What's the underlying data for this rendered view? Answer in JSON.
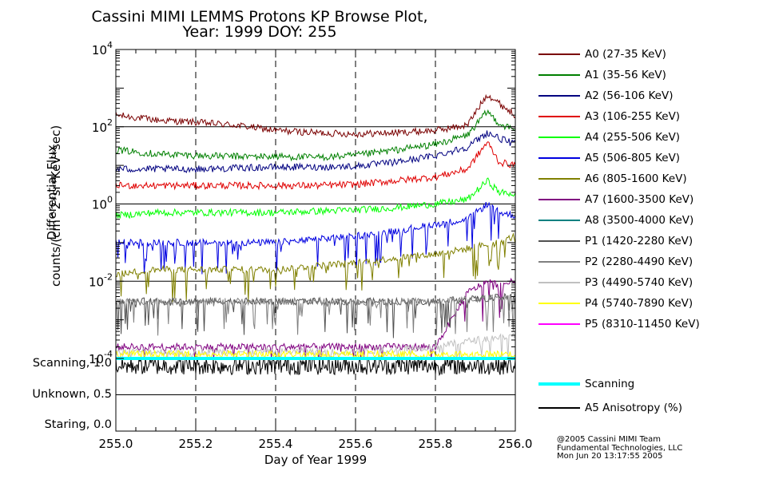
{
  "title_line1": "Cassini MIMI LEMMS Protons KP Browse Plot,",
  "title_line2": "Year: 1999 DOY: 255",
  "chart_data": {
    "type": "line",
    "xlabel": "Day of Year 1999",
    "ylabel_line1": "Differential Flux",
    "ylabel_line2": "counts/(cm^2*sr*KeV*sec)",
    "xlim": [
      255.0,
      256.0
    ],
    "x_ticks": [
      "255.0",
      "255.2",
      "255.4",
      "255.6",
      "255.8",
      "256.0"
    ],
    "y_scale": "log",
    "ylim": [
      0.0001,
      10000
    ],
    "y_ticks": [
      {
        "base": "10",
        "exp": "4"
      },
      {
        "base": "10",
        "exp": "2"
      },
      {
        "base": "10",
        "exp": "0"
      },
      {
        "base": "10",
        "exp": "-2"
      },
      {
        "base": "10",
        "exp": "-4"
      }
    ],
    "grid": "dashed vertical lines at 255.2, 255.4, 255.6, 255.8; solid horizontal lines at decades",
    "legend_position": "right",
    "series": [
      {
        "name": "A0 (27-35 KeV)",
        "color": "#7a0000",
        "x": [
          255.0,
          255.1,
          255.2,
          255.3,
          255.4,
          255.5,
          255.6,
          255.7,
          255.8,
          255.88,
          255.93,
          255.96,
          256.0
        ],
        "y": [
          200,
          150,
          130,
          110,
          80,
          70,
          65,
          70,
          80,
          110,
          700,
          400,
          200
        ]
      },
      {
        "name": "A1 (35-56 KeV)",
        "color": "#008000",
        "x": [
          255.0,
          255.1,
          255.2,
          255.3,
          255.4,
          255.5,
          255.6,
          255.7,
          255.8,
          255.88,
          255.93,
          255.96,
          256.0
        ],
        "y": [
          25,
          20,
          18,
          17,
          17,
          16,
          18,
          25,
          35,
          60,
          250,
          120,
          80
        ]
      },
      {
        "name": "A2 (56-106 KeV)",
        "color": "#000080",
        "x": [
          255.0,
          255.1,
          255.2,
          255.3,
          255.4,
          255.5,
          255.6,
          255.7,
          255.8,
          255.88,
          255.93,
          255.96,
          256.0
        ],
        "y": [
          8,
          8,
          8,
          8.5,
          9,
          9,
          9.5,
          12,
          18,
          30,
          70,
          50,
          35
        ]
      },
      {
        "name": "A3 (106-255 KeV)",
        "color": "#e00000",
        "x": [
          255.0,
          255.1,
          255.2,
          255.3,
          255.4,
          255.5,
          255.6,
          255.7,
          255.8,
          255.88,
          255.93,
          255.96,
          256.0
        ],
        "y": [
          3,
          3,
          3,
          3,
          3,
          3,
          3.2,
          4,
          5,
          8,
          40,
          12,
          10
        ]
      },
      {
        "name": "A4 (255-506 KeV)",
        "color": "#00ff00",
        "x": [
          255.0,
          255.1,
          255.2,
          255.3,
          255.4,
          255.5,
          255.6,
          255.7,
          255.8,
          255.88,
          255.93,
          255.96,
          256.0
        ],
        "y": [
          0.5,
          0.6,
          0.6,
          0.6,
          0.6,
          0.65,
          0.7,
          0.8,
          1.0,
          1.3,
          4.0,
          2.0,
          1.8
        ]
      },
      {
        "name": "A5 (506-805 KeV)",
        "color": "#0000e0",
        "x": [
          255.0,
          255.1,
          255.2,
          255.3,
          255.4,
          255.5,
          255.6,
          255.7,
          255.8,
          255.88,
          255.93,
          255.96,
          256.0
        ],
        "y": [
          0.1,
          0.1,
          0.1,
          0.1,
          0.1,
          0.12,
          0.15,
          0.2,
          0.3,
          0.4,
          1.0,
          0.6,
          0.5
        ]
      },
      {
        "name": "A6 (805-1600 KeV)",
        "color": "#808000",
        "x": [
          255.0,
          255.1,
          255.2,
          255.3,
          255.4,
          255.5,
          255.6,
          255.7,
          255.8,
          255.88,
          255.93,
          255.96,
          256.0
        ],
        "y": [
          0.015,
          0.02,
          0.02,
          0.02,
          0.02,
          0.025,
          0.03,
          0.04,
          0.05,
          0.07,
          0.09,
          0.1,
          0.15
        ]
      },
      {
        "name": "A7 (1600-3500 KeV)",
        "color": "#800080",
        "x": [
          255.0,
          255.1,
          255.2,
          255.3,
          255.4,
          255.5,
          255.6,
          255.7,
          255.8,
          255.88,
          255.93,
          255.96,
          256.0
        ],
        "y": [
          0.0002,
          0.0002,
          0.0002,
          0.0002,
          0.0002,
          0.0002,
          0.0002,
          0.0002,
          0.0002,
          0.005,
          0.01,
          0.008,
          0.01
        ]
      },
      {
        "name": "A8 (3500-4000 KeV)",
        "color": "#008080",
        "x": [],
        "y": []
      },
      {
        "name": "P1 (1420-2280 KeV)",
        "color": "#505050",
        "x": [
          255.0,
          255.2,
          255.4,
          255.6,
          255.8,
          256.0
        ],
        "y": [
          0.003,
          0.003,
          0.003,
          0.003,
          0.003,
          0.004
        ]
      },
      {
        "name": "P2 (2280-4490 KeV)",
        "color": "#808080",
        "x": [
          255.0,
          255.2,
          255.4,
          255.6,
          255.8,
          256.0
        ],
        "y": [
          0.003,
          0.003,
          0.003,
          0.003,
          0.003,
          0.004
        ]
      },
      {
        "name": "P3 (4490-5740 KeV)",
        "color": "#c0c0c0",
        "x": [
          255.0,
          255.2,
          255.4,
          255.6,
          255.8,
          255.9,
          256.0
        ],
        "y": [
          0.00015,
          0.00015,
          0.00015,
          0.00015,
          0.0002,
          0.0003,
          0.0004
        ]
      },
      {
        "name": "P4 (5740-7890 KeV)",
        "color": "#ffff00",
        "x": [
          255.0,
          255.2,
          255.4,
          255.6,
          255.8,
          256.0
        ],
        "y": [
          0.00013,
          0.00013,
          0.00013,
          0.00013,
          0.00013,
          0.00013
        ]
      },
      {
        "name": "P5 (8310-11450 KeV)",
        "color": "#ff00ff",
        "x": [],
        "y": []
      }
    ],
    "status_panel": {
      "labels": [
        "Scanning, 1.0",
        "Unknown, 0.5",
        "Staring, 0.0"
      ],
      "ylim": [
        0,
        1.0
      ],
      "series": [
        {
          "name": "Scanning",
          "color": "#00ffff",
          "value": 1.0
        },
        {
          "name": "A5 Anisotropy (%)",
          "color": "#000000",
          "value": 0.9
        }
      ]
    }
  },
  "credits": [
    "@2005 Cassini MIMI Team",
    "Fundamental Technologies, LLC",
    "Mon Jun 20 13:17:55 2005"
  ]
}
